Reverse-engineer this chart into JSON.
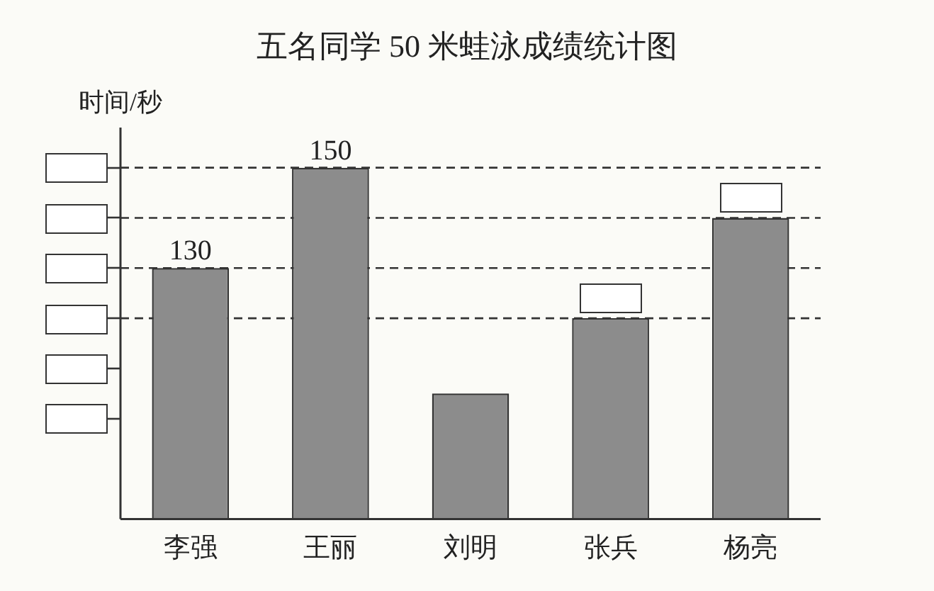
{
  "chart_data": {
    "type": "bar",
    "title": "五名同学 50 米蛙泳成绩统计图",
    "ylabel": "时间/秒",
    "categories": [
      "李强",
      "王丽",
      "刘明",
      "张兵",
      "杨亮"
    ],
    "values": [
      130,
      150,
      105,
      120,
      140
    ],
    "value_labels": [
      "130",
      "150",
      null,
      null,
      null
    ],
    "color": "#8c8c8c",
    "ylim": [
      80,
      158
    ],
    "yticks": [
      {
        "value": 100,
        "label": null
      },
      {
        "value": 110,
        "label": null
      },
      {
        "value": 120,
        "label": null
      },
      {
        "value": 130,
        "label": null
      },
      {
        "value": 140,
        "label": null
      },
      {
        "value": 150,
        "label": null
      }
    ],
    "ref_lines": [
      {
        "axis": "y",
        "value": 120,
        "line_style": "dashed",
        "color": "#333333"
      },
      {
        "axis": "y",
        "value": 130,
        "line_style": "dashed",
        "color": "#333333"
      },
      {
        "axis": "y",
        "value": 140,
        "line_style": "dashed",
        "color": "#333333"
      },
      {
        "axis": "y",
        "value": 150,
        "line_style": "dashed",
        "color": "#333333"
      }
    ],
    "grid": false,
    "legend": false
  }
}
